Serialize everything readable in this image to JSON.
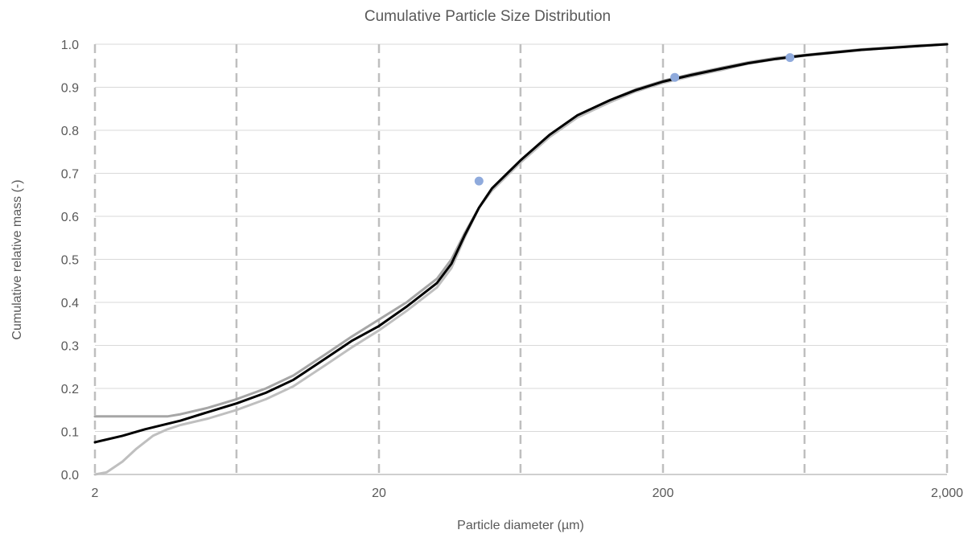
{
  "chart_data": {
    "type": "line",
    "title": "Cumulative Particle Size Distribution",
    "xlabel": "Particle diameter (µm)",
    "ylabel": "Cumulative relative mass (-)",
    "x_scale": "log",
    "xlim": [
      2,
      2000
    ],
    "ylim": [
      0,
      1.0
    ],
    "x_ticks": [
      2,
      20,
      200,
      2000
    ],
    "x_tick_labels": [
      "2",
      "20",
      "200",
      "2,000"
    ],
    "y_ticks": [
      0,
      0.1,
      0.2,
      0.3,
      0.4,
      0.5,
      0.6,
      0.7,
      0.8,
      0.9,
      1.0
    ],
    "y_tick_labels": [
      "0.0",
      "0.1",
      "0.2",
      "0.3",
      "0.4",
      "0.5",
      "0.6",
      "0.7",
      "0.8",
      "0.9",
      "1.0"
    ],
    "horizontal_grid": true,
    "vertical_reference_lines_x": [
      2,
      6.3,
      20,
      63,
      200,
      630,
      2000
    ],
    "legend": "none",
    "colors": {
      "upper_band": "#a6a6a6",
      "lower_band": "#bfbfbf",
      "fitted_line": "#000000",
      "markers": "#8faadc",
      "gridline": "#d9d9d9",
      "dashed_line": "#bfbfbf",
      "axis_line": "#bfbfbf"
    },
    "series": [
      {
        "style": "upper-band",
        "x": [
          2,
          2.5,
          3,
          3.6,
          4,
          5,
          6.3,
          8,
          10,
          13,
          16,
          20,
          25,
          32,
          36,
          40,
          45,
          50,
          63,
          80,
          100,
          130,
          160,
          200,
          250,
          320,
          400,
          500,
          630,
          800,
          1000,
          1300,
          1600,
          2000
        ],
        "y": [
          0.135,
          0.135,
          0.135,
          0.135,
          0.14,
          0.155,
          0.175,
          0.2,
          0.23,
          0.28,
          0.32,
          0.36,
          0.4,
          0.455,
          0.5,
          0.56,
          0.62,
          0.665,
          0.73,
          0.79,
          0.835,
          0.87,
          0.895,
          0.915,
          0.93,
          0.945,
          0.958,
          0.968,
          0.975,
          0.982,
          0.988,
          0.993,
          0.997,
          1.0
        ]
      },
      {
        "style": "lower-band",
        "x": [
          2,
          2.2,
          2.5,
          2.8,
          3.2,
          3.6,
          4,
          5,
          6.3,
          8,
          10,
          13,
          16,
          20,
          25,
          32,
          36,
          40,
          45,
          50,
          63,
          80,
          100,
          130,
          160,
          200,
          250,
          320,
          400,
          500,
          630,
          800,
          1000,
          1300,
          1600,
          2000
        ],
        "y": [
          0.0,
          0.005,
          0.03,
          0.06,
          0.09,
          0.105,
          0.115,
          0.13,
          0.15,
          0.175,
          0.205,
          0.255,
          0.295,
          0.335,
          0.38,
          0.435,
          0.48,
          0.55,
          0.62,
          0.66,
          0.725,
          0.785,
          0.83,
          0.865,
          0.89,
          0.91,
          0.925,
          0.94,
          0.955,
          0.965,
          0.973,
          0.98,
          0.987,
          0.992,
          0.996,
          1.0
        ]
      },
      {
        "style": "fitted",
        "x": [
          2,
          2.5,
          3,
          4,
          5,
          6.3,
          8,
          10,
          13,
          16,
          20,
          25,
          32,
          36,
          40,
          45,
          50,
          63,
          80,
          100,
          130,
          160,
          200,
          250,
          320,
          400,
          500,
          630,
          800,
          1000,
          1300,
          1600,
          2000
        ],
        "y": [
          0.075,
          0.09,
          0.105,
          0.125,
          0.145,
          0.165,
          0.19,
          0.22,
          0.27,
          0.31,
          0.345,
          0.39,
          0.445,
          0.49,
          0.555,
          0.62,
          0.665,
          0.73,
          0.79,
          0.835,
          0.87,
          0.893,
          0.913,
          0.928,
          0.943,
          0.956,
          0.966,
          0.974,
          0.981,
          0.987,
          0.992,
          0.996,
          1.0
        ]
      },
      {
        "style": "points",
        "x": [
          45,
          220,
          560
        ],
        "y": [
          0.682,
          0.923,
          0.969
        ]
      }
    ]
  }
}
